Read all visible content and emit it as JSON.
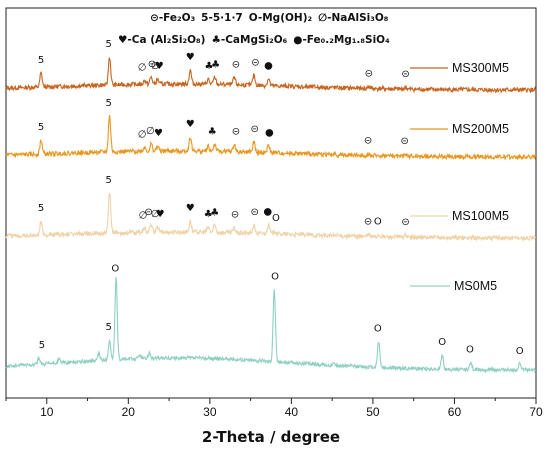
{
  "chart_data": {
    "type": "line",
    "title": "",
    "xlabel": "2-Theta / degree",
    "ylabel": "",
    "xlim": [
      5,
      70
    ],
    "x_ticks": [
      10,
      20,
      30,
      40,
      50,
      60,
      70
    ],
    "grid": false,
    "legend_lines": [
      {
        "entries": [
          {
            "symbol": "⊝",
            "text": "-Fe₂O₃"
          },
          {
            "symbol": "5",
            "text": "-5·1·7"
          },
          {
            "symbol": "O",
            "text": "-Mg(OH)₂"
          },
          {
            "symbol": "∅",
            "text": "-NaAlSi₃O₈"
          }
        ]
      },
      {
        "entries": [
          {
            "symbol": "♥",
            "text": "-Ca (Al₂Si₂O₈)"
          },
          {
            "symbol": "♣",
            "text": "-CaMgSi₂O₆"
          },
          {
            "symbol": "●",
            "text": "-Fe₀.₂Mg₁.₈SiO₄"
          }
        ]
      }
    ],
    "series": [
      {
        "name": "MS300M5",
        "color": "#c8641e",
        "peaks": [
          [
            9.3,
            14
          ],
          [
            17.7,
            28
          ],
          [
            22.0,
            4
          ],
          [
            22.8,
            7
          ],
          [
            23.6,
            5
          ],
          [
            27.6,
            14
          ],
          [
            29.8,
            5
          ],
          [
            30.6,
            7
          ],
          [
            33.0,
            7
          ],
          [
            35.4,
            10
          ],
          [
            37.2,
            7
          ],
          [
            49.5,
            2
          ],
          [
            54.0,
            2
          ]
        ],
        "markers": [
          {
            "x": 9.3,
            "symbol": "5"
          },
          {
            "x": 17.6,
            "symbol": "5"
          },
          {
            "x": 21.7,
            "symbol": "∅"
          },
          {
            "x": 22.9,
            "symbol": "⊝"
          },
          {
            "x": 23.3,
            "symbol": "∅"
          },
          {
            "x": 23.8,
            "symbol": "♥"
          },
          {
            "x": 27.6,
            "symbol": "♥"
          },
          {
            "x": 29.9,
            "symbol": "♣"
          },
          {
            "x": 30.7,
            "symbol": "♣"
          },
          {
            "x": 33.2,
            "symbol": "⊝"
          },
          {
            "x": 35.6,
            "symbol": "⊝"
          },
          {
            "x": 37.2,
            "symbol": "●"
          },
          {
            "x": 49.5,
            "symbol": "⊝"
          },
          {
            "x": 54.0,
            "symbol": "⊝"
          }
        ]
      },
      {
        "name": "MS200M5",
        "color": "#e8961e",
        "peaks": [
          [
            9.3,
            14
          ],
          [
            17.7,
            36
          ],
          [
            22.0,
            4
          ],
          [
            22.8,
            7
          ],
          [
            23.6,
            5
          ],
          [
            27.6,
            14
          ],
          [
            29.8,
            5
          ],
          [
            30.6,
            7
          ],
          [
            33.0,
            7
          ],
          [
            35.4,
            10
          ],
          [
            37.2,
            7
          ],
          [
            49.5,
            2
          ],
          [
            54.0,
            2
          ]
        ],
        "markers": [
          {
            "x": 9.3,
            "symbol": "5"
          },
          {
            "x": 17.6,
            "symbol": "5"
          },
          {
            "x": 21.7,
            "symbol": "∅"
          },
          {
            "x": 22.7,
            "symbol": "∅"
          },
          {
            "x": 23.7,
            "symbol": "♥"
          },
          {
            "x": 27.6,
            "symbol": "♥"
          },
          {
            "x": 30.3,
            "symbol": "♣"
          },
          {
            "x": 33.2,
            "symbol": "⊝"
          },
          {
            "x": 35.5,
            "symbol": "⊝"
          },
          {
            "x": 37.3,
            "symbol": "●"
          },
          {
            "x": 49.4,
            "symbol": "⊝"
          },
          {
            "x": 53.9,
            "symbol": "⊝"
          }
        ]
      },
      {
        "name": "MS100M5",
        "color": "#f0d2a8",
        "peaks": [
          [
            9.3,
            14
          ],
          [
            17.7,
            40
          ],
          [
            22.0,
            4
          ],
          [
            22.8,
            7
          ],
          [
            23.6,
            5
          ],
          [
            27.6,
            11
          ],
          [
            29.8,
            5
          ],
          [
            30.6,
            7
          ],
          [
            33.0,
            5
          ],
          [
            35.4,
            8
          ],
          [
            37.2,
            9
          ],
          [
            38.0,
            3
          ],
          [
            49.5,
            2
          ],
          [
            50.7,
            2
          ],
          [
            54.0,
            2
          ]
        ],
        "markers": [
          {
            "x": 9.3,
            "symbol": "5"
          },
          {
            "x": 17.6,
            "symbol": "5"
          },
          {
            "x": 21.8,
            "symbol": "∅"
          },
          {
            "x": 22.5,
            "symbol": "⊝"
          },
          {
            "x": 23.3,
            "symbol": "∅"
          },
          {
            "x": 23.9,
            "symbol": "♥"
          },
          {
            "x": 27.6,
            "symbol": "♥"
          },
          {
            "x": 29.8,
            "symbol": "♣"
          },
          {
            "x": 30.6,
            "symbol": "♣"
          },
          {
            "x": 33.1,
            "symbol": "⊝"
          },
          {
            "x": 35.5,
            "symbol": "⊝"
          },
          {
            "x": 37.1,
            "symbol": "●"
          },
          {
            "x": 38.1,
            "symbol": "O"
          },
          {
            "x": 49.4,
            "symbol": "⊝"
          },
          {
            "x": 50.6,
            "symbol": "O"
          },
          {
            "x": 54.0,
            "symbol": "⊝"
          }
        ]
      },
      {
        "name": "MS0M5",
        "color": "#8fd0c2",
        "peaks": [
          [
            9.0,
            6
          ],
          [
            11.5,
            4
          ],
          [
            16.4,
            7
          ],
          [
            17.7,
            20
          ],
          [
            18.5,
            82
          ],
          [
            21.4,
            4
          ],
          [
            22.6,
            6
          ],
          [
            37.9,
            72
          ],
          [
            45.2,
            2
          ],
          [
            50.7,
            26
          ],
          [
            58.5,
            14
          ],
          [
            62.0,
            7
          ],
          [
            68.0,
            6
          ]
        ],
        "markers": [
          {
            "x": 18.4,
            "symbol": "O"
          },
          {
            "x": 9.4,
            "symbol": "5"
          },
          {
            "x": 17.6,
            "symbol": "5"
          },
          {
            "x": 38.0,
            "symbol": "O"
          },
          {
            "x": 50.6,
            "symbol": "O"
          },
          {
            "x": 58.5,
            "symbol": "O"
          },
          {
            "x": 61.9,
            "symbol": "O"
          },
          {
            "x": 68.0,
            "symbol": "O"
          }
        ]
      }
    ]
  }
}
